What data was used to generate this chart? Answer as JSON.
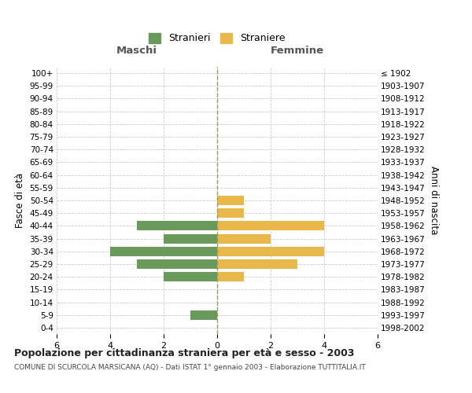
{
  "age_groups": [
    "100+",
    "95-99",
    "90-94",
    "85-89",
    "80-84",
    "75-79",
    "70-74",
    "65-69",
    "60-64",
    "55-59",
    "50-54",
    "45-49",
    "40-44",
    "35-39",
    "30-34",
    "25-29",
    "20-24",
    "15-19",
    "10-14",
    "5-9",
    "0-4"
  ],
  "birth_years": [
    "≤ 1902",
    "1903-1907",
    "1908-1912",
    "1913-1917",
    "1918-1922",
    "1923-1927",
    "1928-1932",
    "1933-1937",
    "1938-1942",
    "1943-1947",
    "1948-1952",
    "1953-1957",
    "1958-1962",
    "1963-1967",
    "1968-1972",
    "1973-1977",
    "1978-1982",
    "1983-1987",
    "1988-1992",
    "1993-1997",
    "1998-2002"
  ],
  "maschi": [
    0,
    0,
    0,
    0,
    0,
    0,
    0,
    0,
    0,
    0,
    0,
    0,
    3,
    2,
    4,
    3,
    2,
    0,
    0,
    1,
    0
  ],
  "femmine": [
    0,
    0,
    0,
    0,
    0,
    0,
    0,
    0,
    0,
    0,
    1,
    1,
    4,
    2,
    4,
    3,
    1,
    0,
    0,
    0,
    0
  ],
  "color_maschi": "#6a9a5b",
  "color_femmine": "#e8b84b",
  "xlim": 6,
  "title": "Popolazione per cittadinanza straniera per età e sesso - 2003",
  "subtitle": "COMUNE DI SCURCOLA MARSICANA (AQ) - Dati ISTAT 1° gennaio 2003 - Elaborazione TUTTITALIA.IT",
  "ylabel_left": "Fasce di età",
  "ylabel_right": "Anni di nascita",
  "label_maschi": "Stranieri",
  "label_femmine": "Straniere",
  "header_maschi": "Maschi",
  "header_femmine": "Femmine",
  "background_color": "#ffffff",
  "grid_color": "#cccccc"
}
